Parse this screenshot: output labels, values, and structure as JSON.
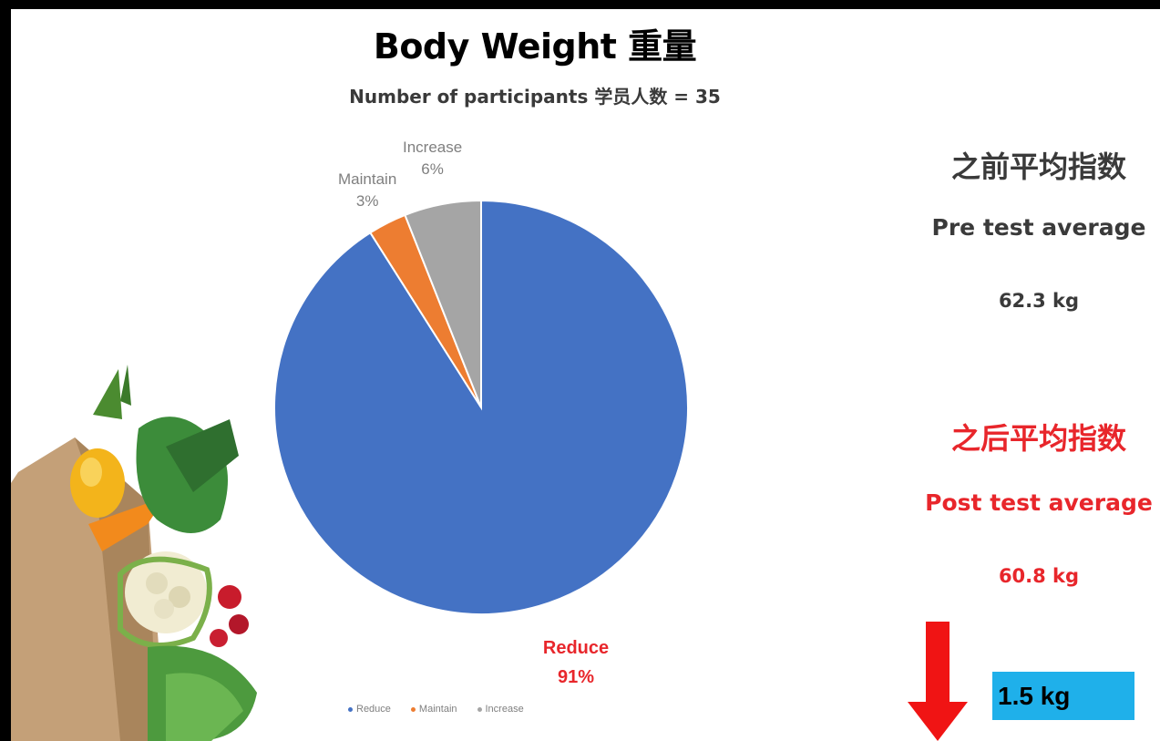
{
  "title": "Body Weight 重量",
  "subtitle": "Number of participants 学员人数 = 35",
  "chart_data": {
    "type": "pie",
    "categories": [
      "Reduce",
      "Maintain",
      "Increase"
    ],
    "values": [
      91,
      3,
      6
    ],
    "value_labels": [
      "91%",
      "3%",
      "6%"
    ],
    "colors": [
      "#4472c4",
      "#ed7d31",
      "#a5a5a5"
    ],
    "legend_placement": "bottom"
  },
  "summary": {
    "pre_cn": "之前平均指数",
    "pre_en": "Pre test average",
    "pre_value": "62.3 kg",
    "post_cn": "之后平均指数",
    "post_en": "Post test average",
    "post_value": "60.8 kg",
    "change_value": "1.5 kg",
    "change_direction_icon": "down-arrow-icon",
    "accent_red": "#e8262b",
    "change_box_color": "#1fb0ea"
  }
}
